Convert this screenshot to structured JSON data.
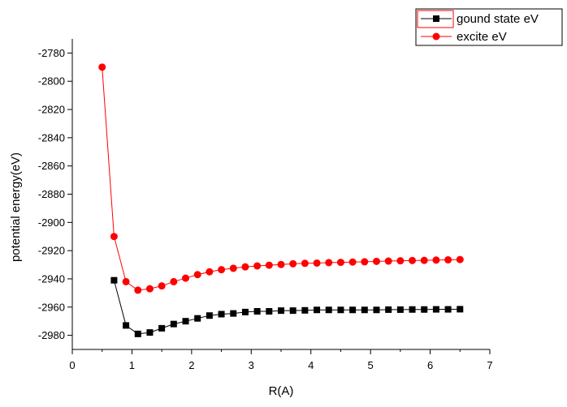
{
  "chart_data": {
    "type": "line",
    "xlabel": "R(A)",
    "ylabel": "potential energy(eV)",
    "xlim": [
      0,
      7
    ],
    "ylim": [
      -2990,
      -2770
    ],
    "x_ticks": [
      "0",
      "1",
      "2",
      "3",
      "4",
      "5",
      "6",
      "7"
    ],
    "y_ticks": [
      "-2780",
      "-2800",
      "-2820",
      "-2840",
      "-2860",
      "-2880",
      "-2900",
      "-2920",
      "-2940",
      "-2960",
      "-2980"
    ],
    "x_tick_values": [
      0,
      1,
      2,
      3,
      4,
      5,
      6,
      7
    ],
    "y_tick_values": [
      -2780,
      -2800,
      -2820,
      -2840,
      -2860,
      -2880,
      -2900,
      -2920,
      -2940,
      -2960,
      -2980
    ],
    "grid": false,
    "legend_position": "top-right",
    "series": [
      {
        "name": "gound state eV",
        "color": "#000000",
        "marker": "square",
        "x": [
          0.7,
          0.9,
          1.1,
          1.3,
          1.5,
          1.7,
          1.9,
          2.1,
          2.3,
          2.5,
          2.7,
          2.9,
          3.1,
          3.3,
          3.5,
          3.7,
          3.9,
          4.1,
          4.3,
          4.5,
          4.7,
          4.9,
          5.1,
          5.3,
          5.5,
          5.7,
          5.9,
          6.1,
          6.3,
          6.5
        ],
        "y": [
          -2941,
          -2973,
          -2979,
          -2978,
          -2975,
          -2972,
          -2970,
          -2968,
          -2966,
          -2965,
          -2964.5,
          -2963.5,
          -2963,
          -2963,
          -2962.5,
          -2962.5,
          -2962.3,
          -2962,
          -2962,
          -2962,
          -2962,
          -2962,
          -2962,
          -2961.8,
          -2961.8,
          -2961.7,
          -2961.7,
          -2961.6,
          -2961.6,
          -2961.5
        ]
      },
      {
        "name": "excite eV",
        "color": "#ff0000",
        "marker": "circle",
        "x": [
          0.5,
          0.7,
          0.9,
          1.1,
          1.3,
          1.5,
          1.7,
          1.9,
          2.1,
          2.3,
          2.5,
          2.7,
          2.9,
          3.1,
          3.3,
          3.5,
          3.7,
          3.9,
          4.1,
          4.3,
          4.5,
          4.7,
          4.9,
          5.1,
          5.3,
          5.5,
          5.7,
          5.9,
          6.1,
          6.3,
          6.5
        ],
        "y": [
          -2790,
          -2910,
          -2942,
          -2948,
          -2947,
          -2945,
          -2942,
          -2939.5,
          -2937,
          -2935,
          -2933.5,
          -2932.5,
          -2931.5,
          -2930.8,
          -2930.3,
          -2929.8,
          -2929.3,
          -2929,
          -2928.8,
          -2928.5,
          -2928.3,
          -2928.1,
          -2927.9,
          -2927.6,
          -2927.4,
          -2927.2,
          -2927,
          -2926.9,
          -2926.7,
          -2926.5,
          -2926.3
        ]
      }
    ]
  }
}
